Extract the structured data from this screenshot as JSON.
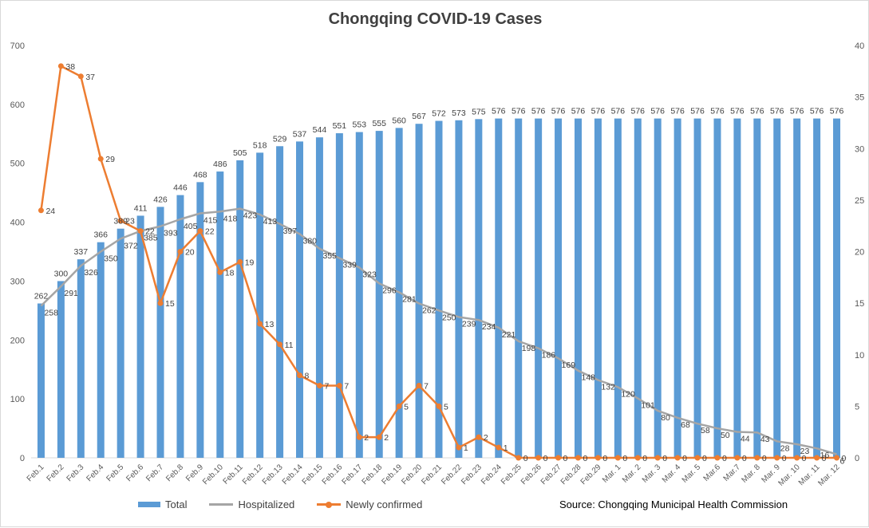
{
  "colors": {
    "total": "#5b9bd5",
    "hospitalized": "#a5a5a5",
    "new": "#ed7d31",
    "grid": "#d9d9d9",
    "axis_text": "#595959"
  },
  "chart_data": {
    "type": "bar",
    "title": "Chongqing COVID-19 Cases",
    "source": "Source: Chongqing Municipal Health Commission",
    "categories": [
      "Feb.1",
      "Feb.2",
      "Feb.3",
      "Feb.4",
      "Feb.5",
      "Feb.6",
      "Feb.7",
      "Feb.8",
      "Feb.9",
      "Feb.10",
      "Feb.11",
      "Feb.12",
      "Feb.13",
      "Feb.14",
      "Feb.15",
      "Feb.16",
      "Feb.17",
      "Feb.18",
      "Feb.19",
      "Feb.20",
      "Feb.21",
      "Feb.22",
      "Feb.23",
      "Feb.24",
      "Feb.25",
      "Feb.26",
      "Feb.27",
      "Feb.28",
      "Feb.29",
      "Mar. 1",
      "Mar. 2",
      "Mar. 3",
      "Mar. 4",
      "Mar. 5",
      "Mar.6",
      "Mar.7",
      "Mar. 8",
      "Mar. 9",
      "Mar. 10",
      "Mar. 11",
      "Mar. 12"
    ],
    "series": [
      {
        "name": "Total",
        "type": "bar",
        "axis": "left",
        "values": [
          262,
          300,
          337,
          366,
          389,
          411,
          426,
          446,
          468,
          486,
          505,
          518,
          529,
          537,
          544,
          551,
          553,
          555,
          560,
          567,
          572,
          573,
          575,
          576,
          576,
          576,
          576,
          576,
          576,
          576,
          576,
          576,
          576,
          576,
          576,
          576,
          576,
          576,
          576,
          576,
          576
        ]
      },
      {
        "name": "Hospitalized",
        "type": "line",
        "axis": "left",
        "values": [
          258,
          291,
          326,
          350,
          372,
          385,
          393,
          405,
          415,
          418,
          423,
          413,
          397,
          380,
          355,
          339,
          323,
          296,
          281,
          262,
          250,
          239,
          234,
          221,
          198,
          186,
          169,
          148,
          132,
          120,
          101,
          80,
          68,
          58,
          50,
          44,
          43,
          28,
          23,
          16,
          6
        ]
      },
      {
        "name": "Newly confirmed",
        "type": "line",
        "axis": "right",
        "values": [
          24,
          38,
          37,
          29,
          23,
          22,
          15,
          20,
          22,
          18,
          19,
          13,
          11,
          8,
          7,
          7,
          2,
          2,
          5,
          7,
          5,
          1,
          2,
          1,
          0,
          0,
          0,
          0,
          0,
          0,
          0,
          0,
          0,
          0,
          0,
          0,
          0,
          0,
          0,
          0,
          0
        ]
      }
    ],
    "y_left": {
      "min": 0,
      "max": 700,
      "ticks": [
        0,
        100,
        200,
        300,
        400,
        500,
        600,
        700
      ]
    },
    "y_right": {
      "min": 0,
      "max": 40,
      "ticks": [
        0,
        5,
        10,
        15,
        20,
        25,
        30,
        35,
        40
      ]
    },
    "grid": false,
    "legend": {
      "position": "bottom-left",
      "entries": [
        "Total",
        "Hospitalized",
        "Newly confirmed"
      ]
    }
  }
}
